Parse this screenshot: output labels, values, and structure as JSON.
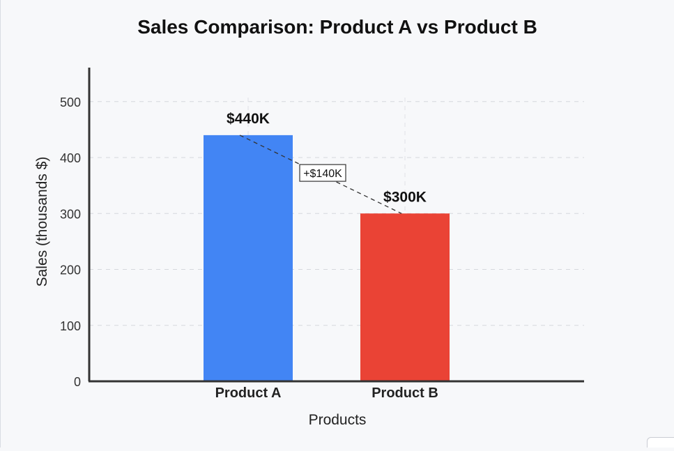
{
  "chart_data": {
    "type": "bar",
    "title": "Sales Comparison: Product A vs Product B",
    "xlabel": "Products",
    "ylabel": "Sales (thousands $)",
    "categories": [
      "Product A",
      "Product B"
    ],
    "values": [
      440,
      300
    ],
    "value_labels": [
      "$440K",
      "$300K"
    ],
    "bar_colors": [
      "#4285f4",
      "#ea4335"
    ],
    "ylim": [
      0,
      560
    ],
    "yticks": [
      0,
      100,
      200,
      300,
      400,
      500
    ],
    "grid": true,
    "annotation": {
      "text": "+$140K",
      "from": "Product A",
      "to": "Product B"
    }
  }
}
